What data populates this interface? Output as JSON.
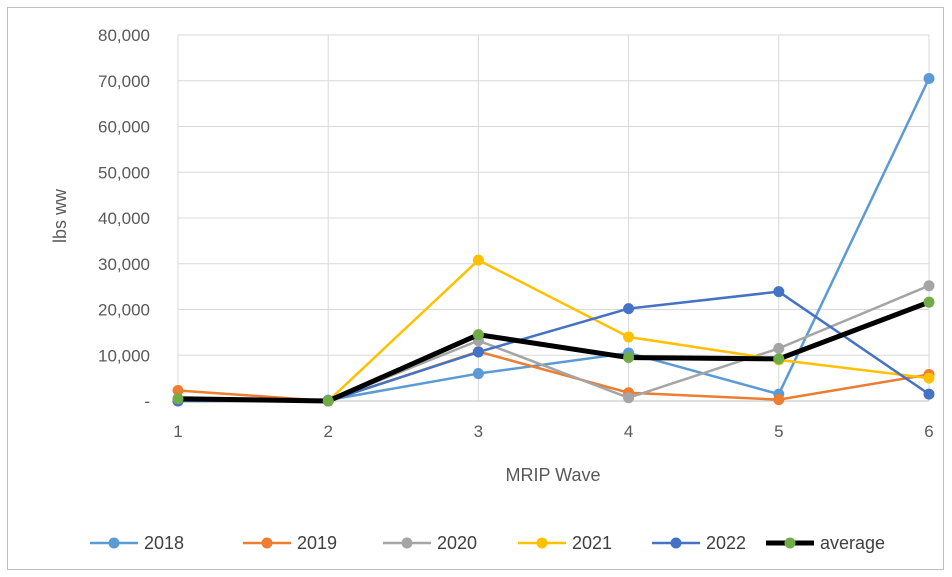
{
  "chart_data": {
    "type": "line",
    "title": "",
    "xlabel": "MRIP Wave",
    "ylabel": "lbs ww",
    "x": [
      1,
      2,
      3,
      4,
      5,
      6
    ],
    "ylim": [
      0,
      80000
    ],
    "yticks": [
      {
        "value": 0,
        "label": "-"
      },
      {
        "value": 10000,
        "label": "10,000"
      },
      {
        "value": 20000,
        "label": "20,000"
      },
      {
        "value": 30000,
        "label": "30,000"
      },
      {
        "value": 40000,
        "label": "40,000"
      },
      {
        "value": 50000,
        "label": "50,000"
      },
      {
        "value": 60000,
        "label": "60,000"
      },
      {
        "value": 70000,
        "label": "70,000"
      },
      {
        "value": 80000,
        "label": "80,000"
      }
    ],
    "xticks": [
      "1",
      "2",
      "3",
      "4",
      "5",
      "6"
    ],
    "grid": true,
    "legend_position": "bottom",
    "series": [
      {
        "name": "2018",
        "color": "#5b9bd5",
        "values": [
          500,
          200,
          6000,
          10500,
          1500,
          70500
        ]
      },
      {
        "name": "2019",
        "color": "#ed7d31",
        "values": [
          2300,
          0,
          10800,
          1800,
          300,
          5800
        ]
      },
      {
        "name": "2020",
        "color": "#a5a5a5",
        "values": [
          0,
          0,
          13200,
          700,
          11500,
          25200
        ]
      },
      {
        "name": "2021",
        "color": "#ffc000",
        "values": [
          0,
          0,
          30800,
          14000,
          9000,
          5000
        ]
      },
      {
        "name": "2022",
        "color": "#4472c4",
        "values": [
          0,
          0,
          10700,
          20200,
          23900,
          1500
        ]
      },
      {
        "name": "average",
        "color": "#000000",
        "marker": "#70ad47",
        "values": [
          500,
          0,
          14500,
          9500,
          9200,
          21600
        ]
      }
    ]
  }
}
